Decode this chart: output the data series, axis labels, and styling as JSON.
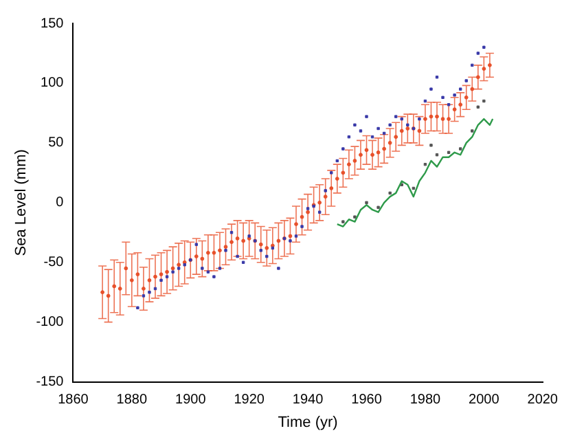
{
  "chart_data": {
    "type": "scatter",
    "xlabel": "Time (yr)",
    "ylabel": "Sea Level (mm)",
    "xlim": [
      1860,
      2020
    ],
    "xticks": [
      1860,
      1880,
      1900,
      1920,
      1940,
      1960,
      1980,
      2000,
      2020
    ],
    "ylim": [
      -150,
      150
    ],
    "yticks": [
      -150,
      -100,
      -50,
      0,
      50,
      100,
      150
    ],
    "grid": false,
    "legend": false,
    "series": [
      {
        "marker": "circle",
        "color": "#e8502a",
        "x": [
          1870,
          1872,
          1874,
          1876,
          1878,
          1880,
          1882,
          1884,
          1886,
          1888,
          1890,
          1892,
          1894,
          1896,
          1898,
          1900,
          1902,
          1904,
          1906,
          1908,
          1910,
          1912,
          1914,
          1916,
          1918,
          1920,
          1922,
          1924,
          1926,
          1928,
          1930,
          1932,
          1934,
          1936,
          1938,
          1940,
          1942,
          1944,
          1946,
          1948,
          1950,
          1952,
          1954,
          1956,
          1958,
          1960,
          1962,
          1964,
          1966,
          1968,
          1970,
          1972,
          1974,
          1976,
          1978,
          1980,
          1982,
          1984,
          1986,
          1988,
          1990,
          1992,
          1994,
          1996,
          1998,
          2000,
          2002
        ],
        "values": [
          -75,
          -78,
          -70,
          -72,
          -55,
          -65,
          -60,
          -72,
          -65,
          -62,
          -60,
          -58,
          -55,
          -52,
          -50,
          -48,
          -45,
          -47,
          -42,
          -42,
          -40,
          -37,
          -33,
          -30,
          -32,
          -30,
          -32,
          -35,
          -38,
          -36,
          -32,
          -30,
          -28,
          -18,
          -12,
          -8,
          -2,
          0,
          5,
          12,
          20,
          25,
          32,
          35,
          40,
          44,
          40,
          42,
          45,
          50,
          55,
          60,
          62,
          62,
          60,
          70,
          72,
          72,
          70,
          70,
          78,
          82,
          88,
          95,
          105,
          112,
          115
        ],
        "errors": [
          22,
          22,
          22,
          22,
          22,
          22,
          18,
          18,
          18,
          18,
          18,
          18,
          18,
          18,
          18,
          15,
          15,
          15,
          15,
          15,
          15,
          15,
          15,
          15,
          15,
          15,
          15,
          15,
          15,
          15,
          15,
          15,
          15,
          15,
          15,
          15,
          15,
          15,
          15,
          15,
          12,
          12,
          12,
          12,
          12,
          12,
          12,
          12,
          12,
          12,
          12,
          12,
          12,
          12,
          12,
          12,
          12,
          12,
          12,
          12,
          10,
          10,
          10,
          10,
          10,
          10,
          10
        ]
      },
      {
        "marker": "square",
        "color": "#3a3aa8",
        "x": [
          1882,
          1884,
          1886,
          1888,
          1890,
          1892,
          1894,
          1896,
          1898,
          1900,
          1902,
          1904,
          1906,
          1908,
          1910,
          1912,
          1914,
          1916,
          1918,
          1920,
          1922,
          1924,
          1926,
          1928,
          1930,
          1932,
          1934,
          1936,
          1938,
          1940,
          1942,
          1944,
          1946,
          1948,
          1950,
          1952,
          1954,
          1956,
          1958,
          1960,
          1962,
          1964,
          1966,
          1968,
          1970,
          1972,
          1974,
          1976,
          1978,
          1980,
          1982,
          1984,
          1986,
          1988,
          1990,
          1992,
          1994,
          1996,
          1998,
          2000
        ],
        "values": [
          -88,
          -78,
          -75,
          -72,
          -65,
          -62,
          -58,
          -55,
          -52,
          -48,
          -35,
          -55,
          -58,
          -62,
          -55,
          -40,
          -25,
          -45,
          -50,
          -28,
          -32,
          -40,
          -45,
          -38,
          -55,
          -30,
          -32,
          -28,
          -20,
          -5,
          -3,
          -8,
          10,
          25,
          35,
          45,
          55,
          65,
          60,
          72,
          55,
          62,
          58,
          65,
          72,
          70,
          65,
          62,
          70,
          85,
          95,
          105,
          88,
          82,
          90,
          95,
          102,
          115,
          125,
          130
        ]
      },
      {
        "marker": "square",
        "color": "#555555",
        "x": [
          1952,
          1956,
          1960,
          1964,
          1968,
          1972,
          1976,
          1980,
          1982,
          1984,
          1988,
          1992,
          1996,
          1998,
          2000
        ],
        "values": [
          -16,
          -12,
          0,
          -4,
          8,
          15,
          12,
          32,
          48,
          40,
          42,
          45,
          60,
          80,
          85
        ]
      },
      {
        "type": "line",
        "marker": "none",
        "color": "#2e9a4a",
        "x": [
          1950,
          1952,
          1954,
          1956,
          1958,
          1960,
          1962,
          1964,
          1966,
          1968,
          1970,
          1972,
          1974,
          1976,
          1978,
          1980,
          1982,
          1984,
          1986,
          1988,
          1990,
          1992,
          1994,
          1996,
          1998,
          2000,
          2002,
          2003
        ],
        "values": [
          -18,
          -20,
          -14,
          -16,
          -6,
          -2,
          -6,
          -8,
          0,
          5,
          8,
          18,
          15,
          5,
          18,
          25,
          35,
          30,
          38,
          38,
          42,
          40,
          50,
          55,
          65,
          70,
          65,
          70
        ]
      }
    ]
  }
}
